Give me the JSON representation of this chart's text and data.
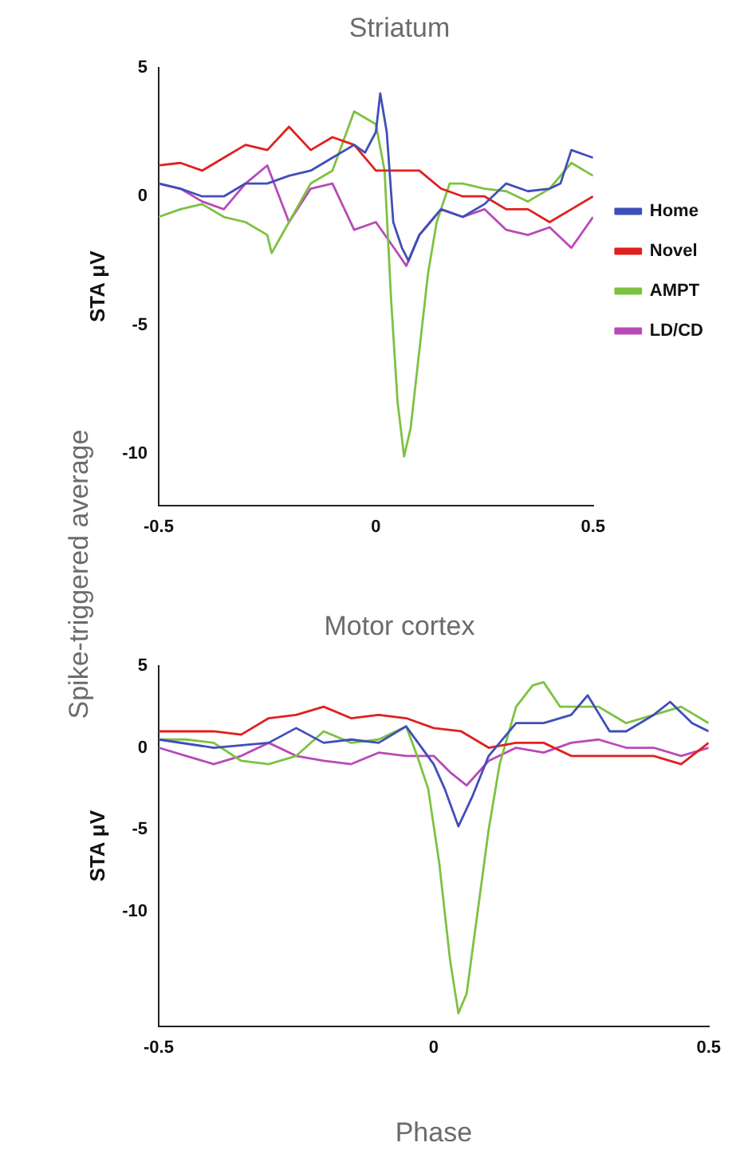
{
  "chart_data": [
    {
      "type": "line",
      "title": "Striatum",
      "ylabel": "STA μV",
      "annotations": [
        "Spike-triggered average"
      ],
      "xlim": [
        -0.5,
        0.5
      ],
      "xticks": [
        -0.5,
        0,
        0.5
      ],
      "ylim": [
        -12,
        5
      ],
      "yticks": [
        -10,
        -5,
        0,
        5
      ],
      "grid": false,
      "legend": "right",
      "marker": "none",
      "line_style": "solid",
      "series": [
        {
          "name": "Home",
          "color": "#3f4fb8",
          "x": [
            -0.5,
            -0.45,
            -0.4,
            -0.35,
            -0.3,
            -0.25,
            -0.2,
            -0.15,
            -0.1,
            -0.05,
            -0.025,
            0,
            0.01,
            0.025,
            0.04,
            0.06,
            0.075,
            0.1,
            0.125,
            0.15,
            0.2,
            0.25,
            0.3,
            0.35,
            0.4,
            0.425,
            0.45,
            0.5
          ],
          "values": [
            0.5,
            0.3,
            0,
            0,
            0.5,
            0.5,
            0.8,
            1,
            1.5,
            2,
            1.7,
            2.5,
            4,
            2.5,
            -1,
            -2,
            -2.5,
            -1.5,
            -1,
            -0.5,
            -0.8,
            -0.3,
            0.5,
            0.2,
            0.3,
            0.5,
            1.8,
            1.5
          ]
        },
        {
          "name": "Novel",
          "color": "#e0201f",
          "x": [
            -0.5,
            -0.45,
            -0.4,
            -0.35,
            -0.3,
            -0.25,
            -0.2,
            -0.15,
            -0.1,
            -0.05,
            0,
            0.05,
            0.1,
            0.15,
            0.2,
            0.25,
            0.3,
            0.35,
            0.4,
            0.45,
            0.5
          ],
          "values": [
            1.2,
            1.3,
            1,
            1.5,
            2,
            1.8,
            2.7,
            1.8,
            2.3,
            2,
            1,
            1,
            1,
            0.3,
            0,
            0,
            -0.5,
            -0.5,
            -1,
            -0.5,
            0
          ]
        },
        {
          "name": "AMPT",
          "color": "#7dc242",
          "x": [
            -0.5,
            -0.45,
            -0.4,
            -0.35,
            -0.3,
            -0.25,
            -0.24,
            -0.2,
            -0.15,
            -0.1,
            -0.05,
            0,
            0.02,
            0.035,
            0.05,
            0.065,
            0.08,
            0.1,
            0.12,
            0.14,
            0.17,
            0.2,
            0.25,
            0.3,
            0.35,
            0.4,
            0.45,
            0.5
          ],
          "values": [
            -0.8,
            -0.5,
            -0.3,
            -0.8,
            -1,
            -1.5,
            -2.2,
            -1,
            0.5,
            1,
            3.3,
            2.8,
            1,
            -4,
            -8,
            -10.1,
            -9,
            -6,
            -3,
            -1,
            0.5,
            0.5,
            0.3,
            0.2,
            -0.2,
            0.3,
            1.3,
            0.8
          ]
        },
        {
          "name": "LD/CD",
          "color": "#b84ab8",
          "x": [
            -0.5,
            -0.45,
            -0.4,
            -0.35,
            -0.3,
            -0.25,
            -0.2,
            -0.15,
            -0.1,
            -0.05,
            0,
            0.05,
            0.07,
            0.1,
            0.15,
            0.2,
            0.25,
            0.3,
            0.35,
            0.4,
            0.45,
            0.5
          ],
          "values": [
            0.5,
            0.3,
            -0.2,
            -0.5,
            0.5,
            1.2,
            -1,
            0.3,
            0.5,
            -1.3,
            -1,
            -2.2,
            -2.7,
            -1.5,
            -0.5,
            -0.8,
            -0.5,
            -1.3,
            -1.5,
            -1.2,
            -2,
            -0.8
          ]
        }
      ]
    },
    {
      "type": "line",
      "title": "Motor cortex",
      "xlabel": "Phase",
      "ylabel": "STA μV",
      "xlim": [
        -0.5,
        0.5
      ],
      "xticks": [
        -0.5,
        0,
        0.5
      ],
      "ylim": [
        -17,
        5
      ],
      "yticks": [
        -10,
        -5,
        0,
        5
      ],
      "grid": false,
      "marker": "none",
      "line_style": "solid",
      "series": [
        {
          "color": "#3f4fb8",
          "x": [
            -0.5,
            -0.4,
            -0.3,
            -0.25,
            -0.2,
            -0.15,
            -0.1,
            -0.05,
            0,
            0.02,
            0.045,
            0.07,
            0.1,
            0.15,
            0.2,
            0.25,
            0.28,
            0.32,
            0.35,
            0.4,
            0.43,
            0.47,
            0.5
          ],
          "values": [
            0.5,
            0,
            0.3,
            1.2,
            0.3,
            0.5,
            0.3,
            1.3,
            -1,
            -2.5,
            -4.8,
            -3,
            -0.5,
            1.5,
            1.5,
            2,
            3.2,
            1,
            1,
            2,
            2.8,
            1.5,
            1
          ]
        },
        {
          "color": "#e0201f",
          "x": [
            -0.5,
            -0.4,
            -0.35,
            -0.3,
            -0.25,
            -0.2,
            -0.15,
            -0.1,
            -0.05,
            0,
            0.05,
            0.1,
            0.15,
            0.2,
            0.25,
            0.3,
            0.35,
            0.4,
            0.45,
            0.5
          ],
          "values": [
            1,
            1,
            0.8,
            1.8,
            2,
            2.5,
            1.8,
            2,
            1.8,
            1.2,
            1,
            0,
            0.3,
            0.3,
            -0.5,
            -0.5,
            -0.5,
            -0.5,
            -1,
            0.3
          ]
        },
        {
          "color": "#7dc242",
          "x": [
            -0.5,
            -0.45,
            -0.4,
            -0.35,
            -0.3,
            -0.25,
            -0.2,
            -0.15,
            -0.1,
            -0.05,
            -0.03,
            -0.01,
            0.01,
            0.03,
            0.045,
            0.06,
            0.08,
            0.1,
            0.12,
            0.15,
            0.18,
            0.2,
            0.23,
            0.27,
            0.3,
            0.35,
            0.4,
            0.45,
            0.5
          ],
          "values": [
            0.5,
            0.5,
            0.3,
            -0.8,
            -1,
            -0.5,
            1,
            0.3,
            0.5,
            1.3,
            -0.5,
            -2.5,
            -7,
            -13,
            -16.2,
            -15,
            -10,
            -5,
            -1,
            2.5,
            3.8,
            4,
            2.5,
            2.5,
            2.5,
            1.5,
            2,
            2.5,
            1.5
          ]
        },
        {
          "color": "#b84ab8",
          "x": [
            -0.5,
            -0.45,
            -0.4,
            -0.35,
            -0.3,
            -0.25,
            -0.2,
            -0.15,
            -0.1,
            -0.05,
            0,
            0.03,
            0.06,
            0.1,
            0.15,
            0.2,
            0.25,
            0.3,
            0.35,
            0.4,
            0.45,
            0.5
          ],
          "values": [
            0,
            -0.5,
            -1,
            -0.5,
            0.3,
            -0.5,
            -0.8,
            -1,
            -0.3,
            -0.5,
            -0.5,
            -1.5,
            -2.3,
            -0.8,
            0,
            -0.3,
            0.3,
            0.5,
            0,
            0,
            -0.5,
            0
          ]
        }
      ]
    }
  ]
}
